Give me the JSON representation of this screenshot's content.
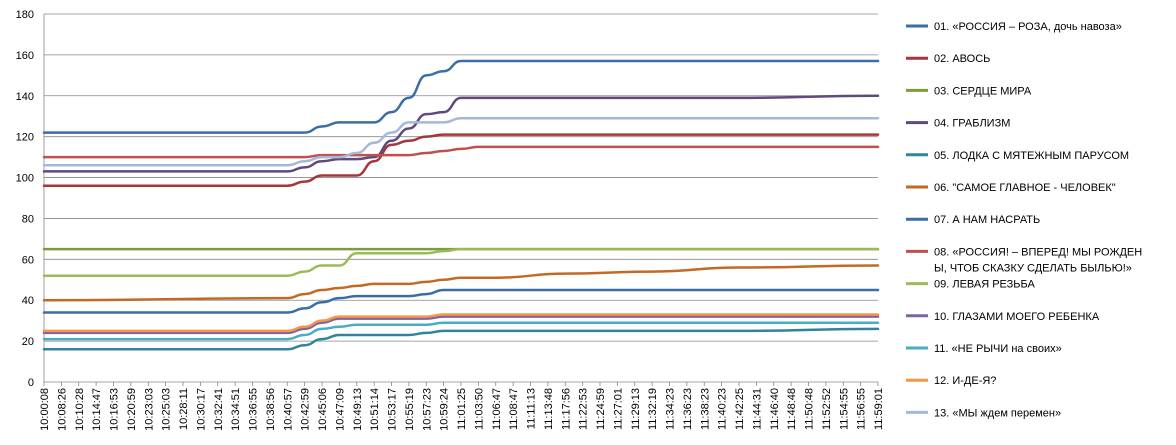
{
  "chart_data": {
    "type": "line",
    "title": "",
    "xlabel": "",
    "ylabel": "",
    "ylim": [
      0,
      180
    ],
    "yticks": [
      0,
      20,
      40,
      60,
      80,
      100,
      120,
      140,
      160,
      180
    ],
    "grid": "horizontal",
    "legend_position": "right",
    "x_ticks": [
      "10:00:08",
      "10:08:26",
      "10:10:28",
      "10:14:47",
      "10:16:53",
      "10:20:59",
      "10:23:03",
      "10:25:03",
      "10:28:11",
      "10:30:17",
      "10:32:41",
      "10:34:51",
      "10:36:55",
      "10:38:56",
      "10:40:57",
      "10:42:59",
      "10:45:06",
      "10:47:09",
      "10:49:13",
      "10:51:14",
      "10:53:17",
      "10:55:19",
      "10:57:23",
      "10:59:24",
      "11:01:25",
      "11:03:50",
      "11:06:47",
      "11:08:47",
      "11:11:13",
      "11:13:48",
      "11:17:56",
      "11:22:53",
      "11:24:59",
      "11:27:01",
      "11:29:13",
      "11:32:19",
      "11:34:23",
      "11:36:23",
      "11:38:23",
      "11:40:23",
      "11:42:25",
      "11:44:31",
      "11:46:40",
      "11:48:48",
      "11:50:48",
      "11:52:52",
      "11:54:55",
      "11:56:55",
      "11:59:01"
    ],
    "x": [
      0,
      14,
      15,
      16,
      17,
      18,
      19,
      20,
      21,
      22,
      23,
      24,
      25,
      26,
      30,
      35,
      40,
      48
    ],
    "series": [
      {
        "name": "01. «РОССИЯ – РОЗА, дочь навоза»",
        "color": "#3A6EA5",
        "values": [
          122,
          122,
          122,
          125,
          127,
          127,
          127,
          132,
          139,
          150,
          152,
          157,
          157,
          157,
          157,
          157,
          157,
          157
        ]
      },
      {
        "name": "02. АВОСЬ",
        "color": "#A4373A",
        "values": [
          96,
          96,
          98,
          101,
          101,
          101,
          108,
          116,
          118,
          120,
          121,
          121,
          121,
          121,
          121,
          121,
          121,
          121
        ]
      },
      {
        "name": "03. СЕРДЦЕ МИРА",
        "color": "#7D9D3C",
        "values": [
          65,
          65,
          65,
          65,
          65,
          65,
          65,
          65,
          65,
          65,
          65,
          65,
          65,
          65,
          65,
          65,
          65,
          65
        ]
      },
      {
        "name": "04. ГРАБЛИЗМ",
        "color": "#604A7B",
        "values": [
          103,
          103,
          105,
          108,
          109,
          109,
          110,
          118,
          124,
          131,
          132,
          139,
          139,
          139,
          139,
          139,
          139,
          140
        ]
      },
      {
        "name": "05. ЛОДКА С МЯТЕЖНЫМ ПАРУСОМ",
        "color": "#31849B",
        "values": [
          16,
          16,
          18,
          21,
          23,
          23,
          23,
          23,
          23,
          24,
          25,
          25,
          25,
          25,
          25,
          25,
          25,
          26
        ]
      },
      {
        "name": "06. \"САМОЕ ГЛАВНОЕ - ЧЕЛОВЕК\"",
        "color": "#C26A25",
        "values": [
          40,
          41,
          43,
          45,
          46,
          47,
          48,
          48,
          48,
          49,
          50,
          51,
          51,
          51,
          53,
          54,
          56,
          57
        ]
      },
      {
        "name": "07. А НАМ НАСРАТЬ",
        "color": "#3A6EA5",
        "values": [
          34,
          34,
          36,
          39,
          41,
          42,
          42,
          42,
          42,
          43,
          45,
          45,
          45,
          45,
          45,
          45,
          45,
          45
        ]
      },
      {
        "name": "08. «РОССИЯ! – ВПЕРЕД! МЫ РОЖДЕНЫ, ЧТОБ СКАЗКУ СДЕЛАТЬ БЫЛЬЮ!»",
        "color": "#C0504D",
        "values": [
          110,
          110,
          110,
          111,
          111,
          111,
          111,
          111,
          111,
          112,
          113,
          114,
          115,
          115,
          115,
          115,
          115,
          115
        ]
      },
      {
        "name": "09. ЛЕВАЯ РЕЗЬБА",
        "color": "#9BBB59",
        "values": [
          52,
          52,
          54,
          57,
          57,
          63,
          63,
          63,
          63,
          63,
          64,
          65,
          65,
          65,
          65,
          65,
          65,
          65
        ]
      },
      {
        "name": "10. ГЛАЗАМИ МОЕГО РЕБЕНКА",
        "color": "#8064A2",
        "values": [
          24,
          24,
          26,
          29,
          31,
          31,
          31,
          31,
          31,
          31,
          32,
          32,
          32,
          32,
          32,
          32,
          32,
          32
        ]
      },
      {
        "name": "11. «НЕ РЫЧИ на своих»",
        "color": "#4BACC6",
        "values": [
          21,
          21,
          23,
          26,
          27,
          28,
          28,
          28,
          28,
          28,
          29,
          29,
          29,
          29,
          29,
          29,
          29,
          29
        ]
      },
      {
        "name": "12. И-ДЕ-Я?",
        "color": "#F79646",
        "values": [
          25,
          25,
          27,
          30,
          32,
          32,
          32,
          32,
          32,
          32,
          33,
          33,
          33,
          33,
          33,
          33,
          33,
          33
        ]
      },
      {
        "name": "13. «МЫ ждем перемен»",
        "color": "#A6B8D9",
        "values": [
          106,
          106,
          108,
          110,
          110,
          112,
          117,
          122,
          127,
          127,
          127,
          129,
          129,
          129,
          129,
          129,
          129,
          129
        ]
      }
    ]
  }
}
